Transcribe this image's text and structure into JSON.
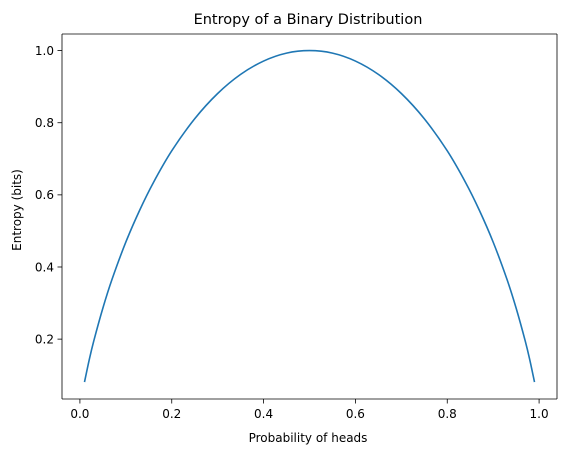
{
  "chart_data": {
    "type": "line",
    "title": "Entropy of a Binary Distribution",
    "xlabel": "Probability of heads",
    "ylabel": "Entropy (bits)",
    "xlim": [
      -0.039,
      1.039
    ],
    "ylim": [
      0.034,
      1.046
    ],
    "xticks": [
      0.0,
      0.2,
      0.4,
      0.6,
      0.8,
      1.0
    ],
    "xtick_labels": [
      "0.0",
      "0.2",
      "0.4",
      "0.6",
      "0.8",
      "1.0"
    ],
    "yticks": [
      0.2,
      0.4,
      0.6,
      0.8,
      1.0
    ],
    "ytick_labels": [
      "0.2",
      "0.4",
      "0.6",
      "0.8",
      "1.0"
    ],
    "grid": false,
    "legend": "none",
    "series": [
      {
        "color": "#1f77b4",
        "x": [
          0.01,
          0.02,
          0.03,
          0.05,
          0.07,
          0.1,
          0.13,
          0.16,
          0.2,
          0.25,
          0.3,
          0.35,
          0.4,
          0.45,
          0.5,
          0.55,
          0.6,
          0.65,
          0.7,
          0.75,
          0.8,
          0.84,
          0.87,
          0.9,
          0.93,
          0.95,
          0.97,
          0.98,
          0.99
        ],
        "values": [
          0.081,
          0.141,
          0.194,
          0.286,
          0.366,
          0.469,
          0.557,
          0.634,
          0.722,
          0.811,
          0.881,
          0.934,
          0.971,
          0.993,
          1.0,
          0.993,
          0.971,
          0.934,
          0.881,
          0.811,
          0.722,
          0.634,
          0.557,
          0.469,
          0.366,
          0.286,
          0.194,
          0.141,
          0.081
        ]
      }
    ]
  }
}
